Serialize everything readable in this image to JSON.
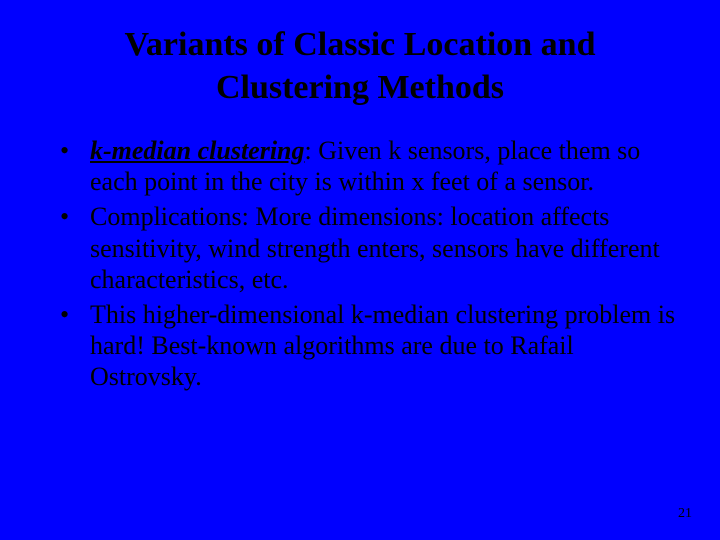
{
  "background_color": "#0000ff",
  "text_color": "#000000",
  "font_family": "Times New Roman",
  "title": {
    "line1": "Variants of Classic Location and",
    "line2": "Clustering Methods",
    "font_size": 34,
    "font_weight": "bold",
    "align": "center"
  },
  "bullets": {
    "font_size": 26,
    "items": [
      {
        "emphasis": "k-median clustering",
        "emphasis_style": {
          "italic": true,
          "bold": true,
          "underline": true
        },
        "rest": ": Given k sensors, place them so each point in the city is within x feet of a sensor."
      },
      {
        "rest": "Complications: More dimensions: location affects sensitivity, wind strength enters, sensors have different characteristics, etc."
      },
      {
        "rest": "This higher-dimensional k-median clustering problem is hard! Best-known algorithms are due to Rafail Ostrovsky."
      }
    ]
  },
  "page_number": "21"
}
